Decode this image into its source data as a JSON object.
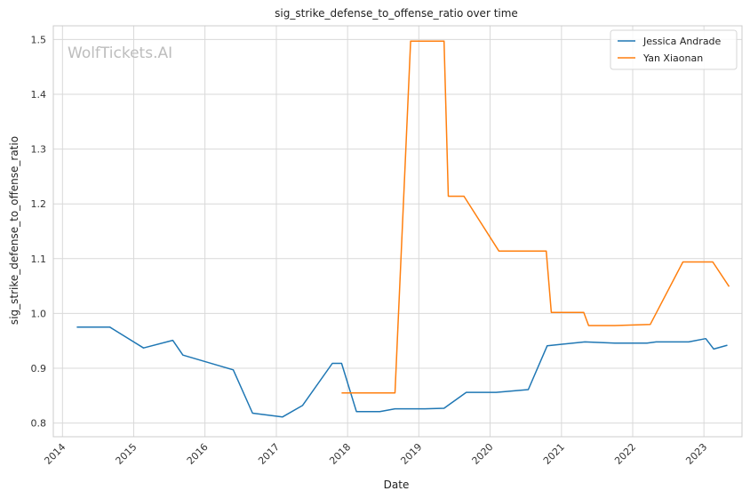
{
  "chart_data": {
    "type": "line",
    "title": "sig_strike_defense_to_offense_ratio over time",
    "xlabel": "Date",
    "ylabel": "sig_strike_defense_to_offense_ratio",
    "watermark": "WolfTickets.AI",
    "ylim": [
      0.775,
      1.525
    ],
    "xlim": [
      "2013-11-15",
      "2023-07-15"
    ],
    "x_ticks": [
      "2014",
      "2015",
      "2016",
      "2017",
      "2018",
      "2019",
      "2020",
      "2021",
      "2022",
      "2023"
    ],
    "y_ticks": [
      "0.8",
      "0.9",
      "1.0",
      "1.1",
      "1.2",
      "1.3",
      "1.4",
      "1.5"
    ],
    "grid": true,
    "legend_position": "top-right",
    "series": [
      {
        "name": "Jessica Andrade",
        "color": "#1f77b4",
        "points": [
          [
            "2014-03-15",
            0.975
          ],
          [
            "2014-09-01",
            0.975
          ],
          [
            "2015-02-20",
            0.937
          ],
          [
            "2015-07-20",
            0.951
          ],
          [
            "2015-09-10",
            0.924
          ],
          [
            "2016-05-25",
            0.897
          ],
          [
            "2016-09-01",
            0.818
          ],
          [
            "2017-02-01",
            0.811
          ],
          [
            "2017-05-15",
            0.832
          ],
          [
            "2017-10-15",
            0.909
          ],
          [
            "2017-12-01",
            0.909
          ],
          [
            "2018-02-15",
            0.821
          ],
          [
            "2018-06-15",
            0.821
          ],
          [
            "2018-09-01",
            0.826
          ],
          [
            "2019-02-01",
            0.826
          ],
          [
            "2019-05-10",
            0.827
          ],
          [
            "2019-09-01",
            0.856
          ],
          [
            "2020-02-01",
            0.856
          ],
          [
            "2020-07-15",
            0.861
          ],
          [
            "2020-10-20",
            0.941
          ],
          [
            "2021-05-01",
            0.948
          ],
          [
            "2021-10-01",
            0.946
          ],
          [
            "2022-03-15",
            0.946
          ],
          [
            "2022-05-01",
            0.948
          ],
          [
            "2022-10-15",
            0.948
          ],
          [
            "2023-01-10",
            0.954
          ],
          [
            "2023-02-20",
            0.935
          ],
          [
            "2023-05-01",
            0.942
          ]
        ]
      },
      {
        "name": "Yan Xiaonan",
        "color": "#ff7f0e",
        "points": [
          [
            "2017-12-01",
            0.855
          ],
          [
            "2018-09-01",
            0.855
          ],
          [
            "2018-11-20",
            1.497
          ],
          [
            "2019-05-10",
            1.497
          ],
          [
            "2019-06-01",
            1.214
          ],
          [
            "2019-08-20",
            1.214
          ],
          [
            "2020-02-15",
            1.114
          ],
          [
            "2020-10-15",
            1.114
          ],
          [
            "2020-11-10",
            1.002
          ],
          [
            "2021-04-25",
            1.002
          ],
          [
            "2021-05-20",
            0.978
          ],
          [
            "2021-10-01",
            0.978
          ],
          [
            "2022-04-01",
            0.98
          ],
          [
            "2022-09-15",
            1.094
          ],
          [
            "2023-02-15",
            1.094
          ],
          [
            "2023-05-10",
            1.049
          ]
        ]
      }
    ]
  }
}
